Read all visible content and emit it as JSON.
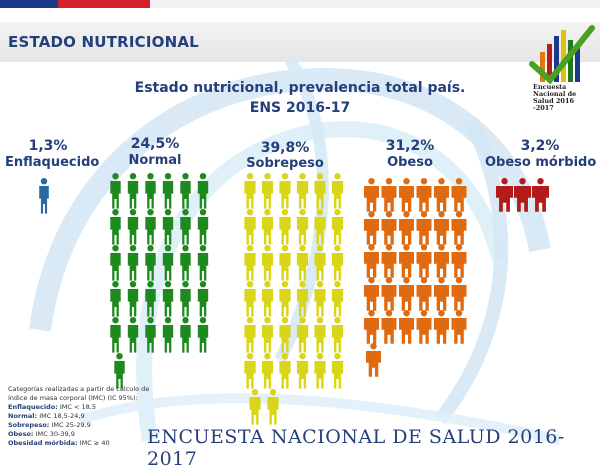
{
  "header": {
    "section_title": "ESTADO NUTRICIONAL"
  },
  "chart_title": {
    "line1": "Estado nutricional, prevalencia  total país.",
    "line2": "ENS 2016-17"
  },
  "logo": {
    "text": "Encuesta Nacional de Salud 2016 -2017"
  },
  "chart_data": {
    "type": "pictogram",
    "categories": [
      "Enflaquecido",
      "Normal",
      "Sobrepeso",
      "Obeso",
      "Obeso mórbido"
    ],
    "values": [
      1.3,
      24.5,
      39.8,
      31.2,
      3.2
    ],
    "value_labels": [
      "1,3%",
      "24,5%",
      "39,8%",
      "31,2%",
      "3,2%"
    ],
    "colors": [
      "#2a6aa0",
      "#1e8a1e",
      "#d9d61a",
      "#e06a10",
      "#b31a1a"
    ]
  },
  "labels": {
    "enflaquecido": {
      "pct": "1,3%",
      "name": "Enflaquecido"
    },
    "normal": {
      "pct": "24,5%",
      "name": "Normal"
    },
    "sobrepeso": {
      "pct": "39,8%",
      "name": "Sobrepeso"
    },
    "obeso": {
      "pct": "31,2%",
      "name": "Obeso"
    },
    "morbido": {
      "pct": "3,2%",
      "name": "Obeso mórbido"
    }
  },
  "footnote": {
    "intro": "Categorías realizadas a partir de cálculo de índice de masa corporal (IMC) (IC 95%):",
    "rows": [
      {
        "name": "Enflaquecido:",
        "value": "IMC < 18,5"
      },
      {
        "name": "Normal:",
        "value": "IMC  18,5-24,9"
      },
      {
        "name": "Sobrepeso:",
        "value": "IMC 25-29,9"
      },
      {
        "name": "Obeso:",
        "value": "IMC 30-39,9"
      },
      {
        "name": "Obesidad mórbida:",
        "value": "IMC ≥ 40"
      }
    ]
  },
  "banner": {
    "text": "ENCUESTA NACIONAL DE SALUD 2016-2017"
  }
}
